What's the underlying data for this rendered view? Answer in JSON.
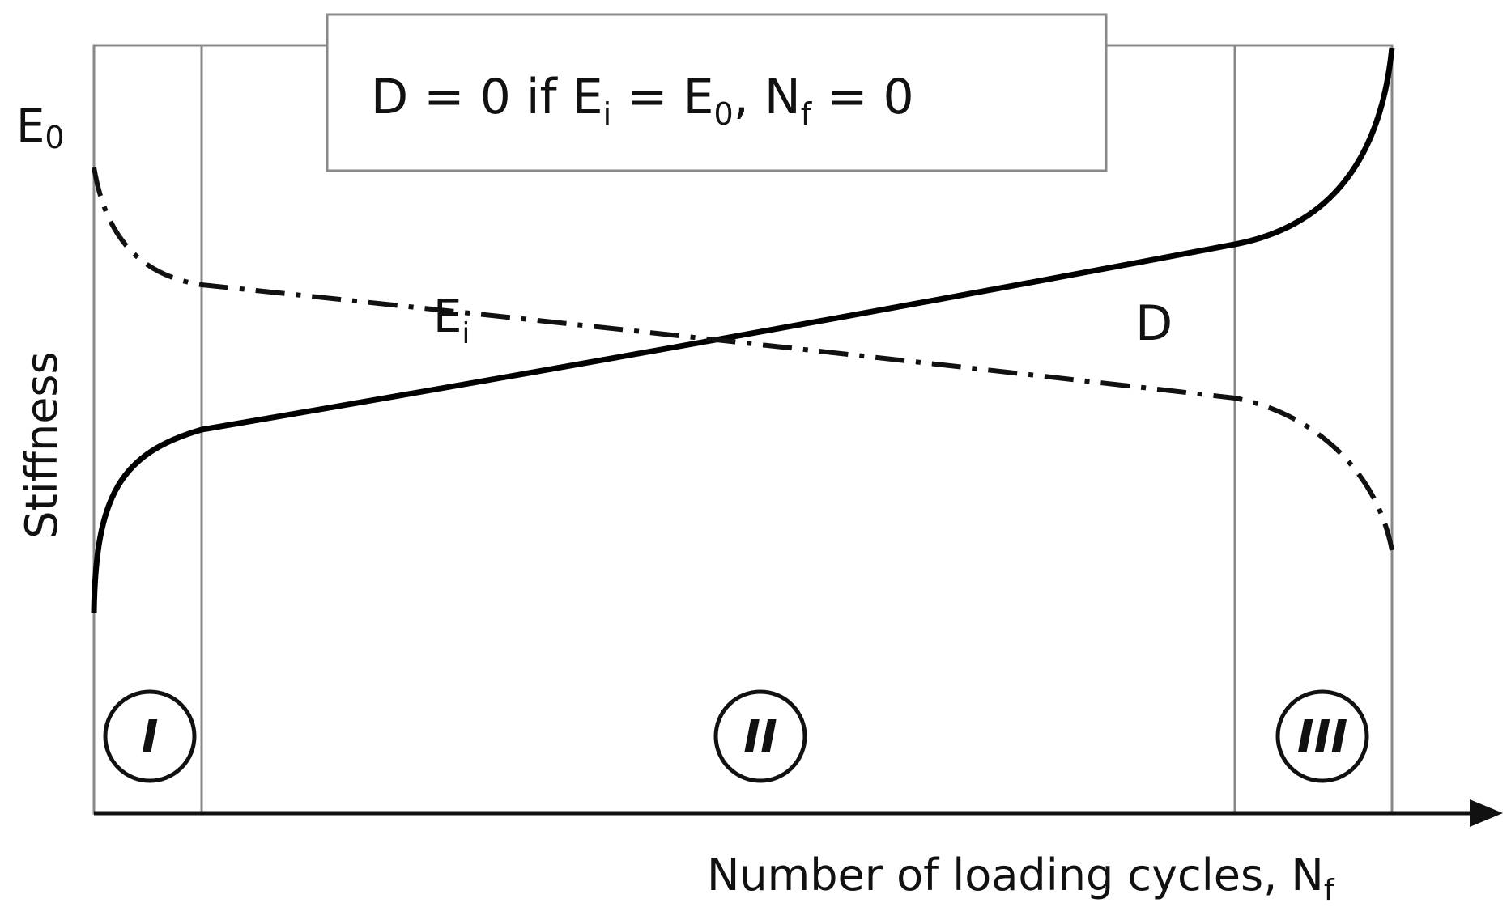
{
  "y_axis_top_label": {
    "base": "E",
    "sub": "0"
  },
  "y_axis_title": "Stiffness",
  "x_axis_title": {
    "base": "Number of loading cycles, N",
    "sub": "f"
  },
  "condition_box": {
    "parts": [
      {
        "text": "D = 0  if E",
        "sub": "i"
      },
      {
        "text": " = E",
        "sub": "0"
      },
      {
        "text": ", N",
        "sub": "f"
      },
      {
        "text": " = 0"
      }
    ]
  },
  "curves": {
    "stiffness": {
      "base": "E",
      "sub": "i"
    },
    "damage": "D"
  },
  "stages": [
    "I",
    "II",
    "III"
  ]
}
